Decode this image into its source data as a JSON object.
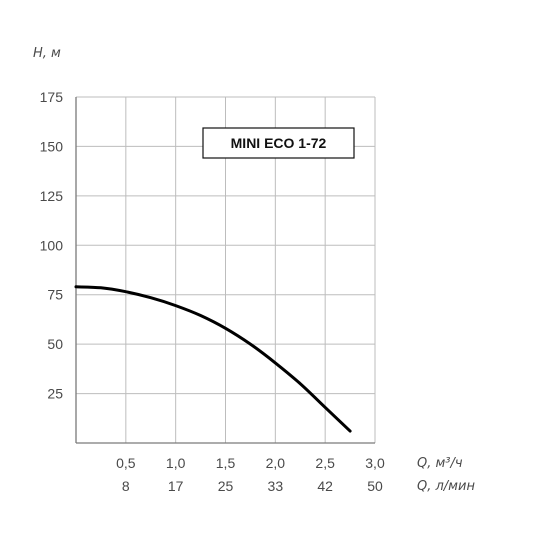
{
  "chart_data": {
    "type": "line",
    "title": "MINI ECO 1-72",
    "ylabel": "H, м",
    "xlabel": "Q, м³/ч",
    "xlabel_secondary": "Q, л/мин",
    "xlim": [
      0,
      3.0
    ],
    "ylim": [
      0,
      175
    ],
    "grid": true,
    "x_ticks": [
      "0,5",
      "1,0",
      "1,5",
      "2,0",
      "2,5",
      "3,0"
    ],
    "x_ticks_secondary": [
      "8",
      "17",
      "25",
      "33",
      "42",
      "50"
    ],
    "y_ticks": [
      "175",
      "150",
      "125",
      "100",
      "75",
      "50",
      "25"
    ],
    "series": [
      {
        "x": [
          0,
          0.25,
          0.5,
          0.75,
          1.0,
          1.25,
          1.5,
          1.75,
          2.0,
          2.25,
          2.5,
          2.75
        ],
        "y": [
          79,
          78.5,
          76.5,
          73.5,
          69.5,
          64.5,
          58,
          50,
          40.5,
          30,
          18,
          6
        ]
      }
    ],
    "colors": {
      "curve": "#000000",
      "grid": "#bdbdbd",
      "axis": "#7a7a7a"
    }
  }
}
